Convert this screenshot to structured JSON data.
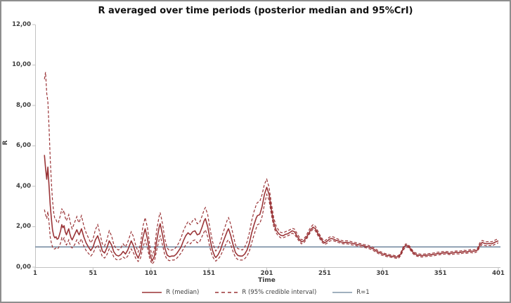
{
  "title": "R averaged over time periods (posterior median and 95%CrI)",
  "y_axis_title": "R",
  "x_axis_title": "Time",
  "legend": {
    "items": [
      {
        "label": "R (median)",
        "style": "solid",
        "color": "#9a3437"
      },
      {
        "label": "R (95% credible interval)",
        "style": "dashed",
        "color": "#9a3437"
      },
      {
        "label": "R=1",
        "style": "solid",
        "color": "#8095a9"
      }
    ]
  },
  "chart_data": {
    "type": "line",
    "title": "R averaged over time periods (posterior median and 95%CrI)",
    "xlabel": "Time",
    "ylabel": "R",
    "xlim": [
      1,
      401
    ],
    "ylim": [
      0,
      12
    ],
    "grid": false,
    "legend_position": "bottom",
    "decimal_separator": ",",
    "colors": {
      "median_line": "#9a3437",
      "interval_line": "#9a3437",
      "reference_line": "#8095a9",
      "axis": "#c2c2c2",
      "tick_text": "#3d3d3d"
    },
    "y_ticks": [
      {
        "v": 12,
        "label": "12,00"
      },
      {
        "v": 10,
        "label": "10,00"
      },
      {
        "v": 8,
        "label": "8,00"
      },
      {
        "v": 6,
        "label": "6,00"
      },
      {
        "v": 4,
        "label": "4,00"
      },
      {
        "v": 2,
        "label": "2,00"
      },
      {
        "v": 0,
        "label": "0,00"
      }
    ],
    "x_ticks": [
      {
        "v": 1,
        "label": "1"
      },
      {
        "v": 51,
        "label": "51"
      },
      {
        "v": 101,
        "label": "101"
      },
      {
        "v": 151,
        "label": "151"
      },
      {
        "v": 201,
        "label": "201"
      },
      {
        "v": 251,
        "label": "251"
      },
      {
        "v": 301,
        "label": "301"
      },
      {
        "v": 351,
        "label": "351"
      },
      {
        "v": 401,
        "label": "401"
      }
    ],
    "reference_line": {
      "y": 1,
      "label": "R=1"
    },
    "series_names": [
      "R (median)",
      "R (95% credible interval)",
      "R=1"
    ],
    "columns": [
      "time",
      "lower95",
      "median",
      "upper95"
    ],
    "rows": [
      [
        9,
        2.85,
        5.55,
        9.3
      ],
      [
        10,
        2.6,
        4.9,
        9.65
      ],
      [
        11,
        2.4,
        4.35,
        8.6
      ],
      [
        12,
        2.75,
        4.95,
        8.2
      ],
      [
        13,
        2.2,
        4.0,
        6.9
      ],
      [
        14,
        1.5,
        3.1,
        5.4
      ],
      [
        15,
        1.2,
        2.4,
        4.2
      ],
      [
        16,
        1.0,
        1.85,
        3.3
      ],
      [
        17,
        0.9,
        1.55,
        2.7
      ],
      [
        18,
        0.9,
        1.45,
        2.4
      ],
      [
        19,
        0.95,
        1.5,
        2.35
      ],
      [
        20,
        0.9,
        1.38,
        2.2
      ],
      [
        21,
        0.95,
        1.42,
        2.2
      ],
      [
        22,
        1.05,
        1.6,
        2.4
      ],
      [
        23,
        1.2,
        1.8,
        2.6
      ],
      [
        24,
        1.45,
        2.1,
        2.9
      ],
      [
        25,
        1.35,
        1.95,
        2.7
      ],
      [
        26,
        1.45,
        2.05,
        2.8
      ],
      [
        27,
        1.2,
        1.75,
        2.45
      ],
      [
        28,
        1.1,
        1.6,
        2.3
      ],
      [
        29,
        1.2,
        1.75,
        2.45
      ],
      [
        30,
        1.35,
        1.9,
        2.6
      ],
      [
        31,
        1.15,
        1.65,
        2.3
      ],
      [
        32,
        1.0,
        1.45,
        2.05
      ],
      [
        33,
        0.95,
        1.35,
        1.9
      ],
      [
        35,
        1.1,
        1.6,
        2.2
      ],
      [
        37,
        1.35,
        1.85,
        2.5
      ],
      [
        38,
        1.25,
        1.7,
        2.3
      ],
      [
        39,
        1.15,
        1.6,
        2.2
      ],
      [
        40,
        1.3,
        1.75,
        2.4
      ],
      [
        41,
        1.4,
        1.9,
        2.55
      ],
      [
        43,
        1.05,
        1.5,
        2.05
      ],
      [
        45,
        0.82,
        1.2,
        1.7
      ],
      [
        47,
        0.68,
        1.0,
        1.45
      ],
      [
        49,
        0.55,
        0.82,
        1.2
      ],
      [
        51,
        0.68,
        1.0,
        1.4
      ],
      [
        53,
        0.95,
        1.35,
        1.85
      ],
      [
        55,
        1.1,
        1.55,
        2.1
      ],
      [
        57,
        0.85,
        1.2,
        1.65
      ],
      [
        59,
        0.52,
        0.8,
        1.15
      ],
      [
        61,
        0.45,
        0.7,
        1.05
      ],
      [
        63,
        0.62,
        0.95,
        1.35
      ],
      [
        65,
        0.9,
        1.3,
        1.8
      ],
      [
        67,
        0.75,
        1.1,
        1.55
      ],
      [
        69,
        0.5,
        0.75,
        1.1
      ],
      [
        71,
        0.38,
        0.6,
        0.92
      ],
      [
        73,
        0.35,
        0.55,
        0.85
      ],
      [
        75,
        0.4,
        0.62,
        0.95
      ],
      [
        77,
        0.5,
        0.78,
        1.15
      ],
      [
        79,
        0.42,
        0.65,
        1.0
      ],
      [
        81,
        0.55,
        0.85,
        1.25
      ],
      [
        84,
        0.9,
        1.3,
        1.75
      ],
      [
        86,
        0.7,
        1.05,
        1.5
      ],
      [
        88,
        0.42,
        0.68,
        1.05
      ],
      [
        90,
        0.28,
        0.45,
        0.75
      ],
      [
        92,
        0.45,
        0.75,
        1.15
      ],
      [
        94,
        0.95,
        1.45,
        2.0
      ],
      [
        96,
        1.35,
        1.9,
        2.45
      ],
      [
        98,
        0.95,
        1.4,
        1.95
      ],
      [
        100,
        0.4,
        0.65,
        1.05
      ],
      [
        102,
        0.15,
        0.3,
        0.55
      ],
      [
        104,
        0.3,
        0.55,
        0.9
      ],
      [
        106,
        0.85,
        1.3,
        1.85
      ],
      [
        108,
        1.35,
        1.95,
        2.5
      ],
      [
        109,
        1.55,
        2.15,
        2.7
      ],
      [
        111,
        1.1,
        1.6,
        2.15
      ],
      [
        113,
        0.6,
        0.95,
        1.4
      ],
      [
        115,
        0.38,
        0.6,
        0.95
      ],
      [
        117,
        0.32,
        0.52,
        0.82
      ],
      [
        119,
        0.35,
        0.55,
        0.85
      ],
      [
        121,
        0.35,
        0.55,
        0.88
      ],
      [
        123,
        0.42,
        0.65,
        1.0
      ],
      [
        125,
        0.55,
        0.82,
        1.2
      ],
      [
        127,
        0.7,
        1.0,
        1.45
      ],
      [
        129,
        0.9,
        1.3,
        1.8
      ],
      [
        131,
        1.1,
        1.55,
        2.05
      ],
      [
        133,
        1.25,
        1.7,
        2.25
      ],
      [
        135,
        1.15,
        1.6,
        2.1
      ],
      [
        137,
        1.3,
        1.75,
        2.3
      ],
      [
        139,
        1.35,
        1.8,
        2.4
      ],
      [
        141,
        1.2,
        1.6,
        2.15
      ],
      [
        143,
        1.25,
        1.65,
        2.2
      ],
      [
        145,
        1.5,
        1.95,
        2.5
      ],
      [
        147,
        1.75,
        2.3,
        2.85
      ],
      [
        148,
        1.85,
        2.4,
        2.95
      ],
      [
        150,
        1.5,
        2.0,
        2.6
      ],
      [
        152,
        0.95,
        1.4,
        1.9
      ],
      [
        154,
        0.55,
        0.85,
        1.3
      ],
      [
        156,
        0.35,
        0.55,
        0.9
      ],
      [
        157,
        0.3,
        0.48,
        0.8
      ],
      [
        159,
        0.4,
        0.62,
        0.95
      ],
      [
        161,
        0.55,
        0.85,
        1.25
      ],
      [
        163,
        0.8,
        1.2,
        1.65
      ],
      [
        165,
        1.05,
        1.5,
        2.0
      ],
      [
        167,
        1.3,
        1.8,
        2.35
      ],
      [
        168,
        1.35,
        1.9,
        2.45
      ],
      [
        170,
        1.1,
        1.55,
        2.1
      ],
      [
        172,
        0.75,
        1.1,
        1.6
      ],
      [
        174,
        0.48,
        0.72,
        1.1
      ],
      [
        176,
        0.38,
        0.58,
        0.92
      ],
      [
        178,
        0.35,
        0.55,
        0.88
      ],
      [
        180,
        0.35,
        0.55,
        0.85
      ],
      [
        182,
        0.42,
        0.65,
        1.0
      ],
      [
        184,
        0.55,
        0.85,
        1.25
      ],
      [
        186,
        0.8,
        1.2,
        1.7
      ],
      [
        188,
        1.2,
        1.7,
        2.3
      ],
      [
        190,
        1.6,
        2.1,
        2.75
      ],
      [
        192,
        1.95,
        2.45,
        3.1
      ],
      [
        193,
        2.1,
        2.55,
        3.2
      ],
      [
        195,
        2.15,
        2.6,
        3.25
      ],
      [
        197,
        2.5,
        3.0,
        3.6
      ],
      [
        199,
        3.1,
        3.6,
        4.1
      ],
      [
        201,
        3.6,
        3.95,
        4.35
      ],
      [
        203,
        3.3,
        3.6,
        3.95
      ],
      [
        205,
        2.6,
        2.85,
        3.15
      ],
      [
        207,
        2.0,
        2.2,
        2.45
      ],
      [
        209,
        1.7,
        1.85,
        2.05
      ],
      [
        211,
        1.55,
        1.68,
        1.85
      ],
      [
        213,
        1.45,
        1.58,
        1.72
      ],
      [
        215,
        1.45,
        1.55,
        1.7
      ],
      [
        217,
        1.5,
        1.62,
        1.75
      ],
      [
        219,
        1.55,
        1.65,
        1.8
      ],
      [
        221,
        1.6,
        1.72,
        1.85
      ],
      [
        223,
        1.68,
        1.8,
        1.92
      ],
      [
        225,
        1.62,
        1.75,
        1.88
      ],
      [
        227,
        1.45,
        1.55,
        1.68
      ],
      [
        229,
        1.28,
        1.38,
        1.5
      ],
      [
        231,
        1.15,
        1.25,
        1.35
      ],
      [
        233,
        1.2,
        1.3,
        1.4
      ],
      [
        235,
        1.35,
        1.45,
        1.55
      ],
      [
        237,
        1.55,
        1.65,
        1.78
      ],
      [
        239,
        1.75,
        1.85,
        1.98
      ],
      [
        241,
        1.88,
        1.98,
        2.1
      ],
      [
        243,
        1.8,
        1.9,
        2.02
      ],
      [
        245,
        1.58,
        1.68,
        1.8
      ],
      [
        247,
        1.38,
        1.48,
        1.58
      ],
      [
        249,
        1.22,
        1.3,
        1.4
      ],
      [
        251,
        1.12,
        1.2,
        1.3
      ],
      [
        253,
        1.18,
        1.28,
        1.38
      ],
      [
        255,
        1.28,
        1.38,
        1.48
      ],
      [
        257,
        1.32,
        1.42,
        1.52
      ],
      [
        259,
        1.3,
        1.38,
        1.48
      ],
      [
        261,
        1.25,
        1.32,
        1.42
      ],
      [
        263,
        1.22,
        1.3,
        1.38
      ],
      [
        265,
        1.18,
        1.25,
        1.33
      ],
      [
        267,
        1.15,
        1.22,
        1.3
      ],
      [
        269,
        1.15,
        1.22,
        1.3
      ],
      [
        271,
        1.15,
        1.22,
        1.3
      ],
      [
        273,
        1.12,
        1.2,
        1.28
      ],
      [
        275,
        1.1,
        1.18,
        1.25
      ],
      [
        277,
        1.08,
        1.15,
        1.22
      ],
      [
        279,
        1.05,
        1.12,
        1.2
      ],
      [
        281,
        1.02,
        1.1,
        1.17
      ],
      [
        283,
        1.0,
        1.08,
        1.15
      ],
      [
        285,
        0.98,
        1.05,
        1.12
      ],
      [
        287,
        0.95,
        1.02,
        1.1
      ],
      [
        289,
        0.92,
        1.0,
        1.07
      ],
      [
        291,
        0.88,
        0.95,
        1.02
      ],
      [
        293,
        0.82,
        0.9,
        0.97
      ],
      [
        295,
        0.75,
        0.82,
        0.9
      ],
      [
        297,
        0.68,
        0.75,
        0.82
      ],
      [
        299,
        0.62,
        0.7,
        0.77
      ],
      [
        301,
        0.58,
        0.65,
        0.72
      ],
      [
        303,
        0.55,
        0.62,
        0.68
      ],
      [
        305,
        0.52,
        0.58,
        0.65
      ],
      [
        307,
        0.5,
        0.56,
        0.62
      ],
      [
        309,
        0.48,
        0.54,
        0.6
      ],
      [
        311,
        0.46,
        0.52,
        0.58
      ],
      [
        313,
        0.44,
        0.5,
        0.56
      ],
      [
        315,
        0.45,
        0.52,
        0.58
      ],
      [
        317,
        0.6,
        0.68,
        0.75
      ],
      [
        319,
        0.85,
        0.95,
        1.02
      ],
      [
        321,
        1.0,
        1.08,
        1.15
      ],
      [
        323,
        0.98,
        1.05,
        1.12
      ],
      [
        325,
        0.85,
        0.92,
        1.0
      ],
      [
        327,
        0.68,
        0.75,
        0.82
      ],
      [
        329,
        0.58,
        0.65,
        0.72
      ],
      [
        331,
        0.54,
        0.6,
        0.67
      ],
      [
        333,
        0.52,
        0.58,
        0.65
      ],
      [
        335,
        0.5,
        0.57,
        0.63
      ],
      [
        337,
        0.52,
        0.58,
        0.65
      ],
      [
        339,
        0.53,
        0.6,
        0.66
      ],
      [
        341,
        0.54,
        0.6,
        0.67
      ],
      [
        343,
        0.55,
        0.62,
        0.68
      ],
      [
        345,
        0.56,
        0.63,
        0.7
      ],
      [
        347,
        0.58,
        0.65,
        0.72
      ],
      [
        349,
        0.6,
        0.67,
        0.74
      ],
      [
        351,
        0.62,
        0.68,
        0.75
      ],
      [
        353,
        0.63,
        0.7,
        0.77
      ],
      [
        355,
        0.65,
        0.72,
        0.78
      ],
      [
        357,
        0.64,
        0.7,
        0.77
      ],
      [
        359,
        0.62,
        0.68,
        0.75
      ],
      [
        361,
        0.63,
        0.7,
        0.77
      ],
      [
        363,
        0.65,
        0.72,
        0.79
      ],
      [
        365,
        0.66,
        0.73,
        0.8
      ],
      [
        367,
        0.65,
        0.72,
        0.79
      ],
      [
        369,
        0.67,
        0.74,
        0.81
      ],
      [
        371,
        0.7,
        0.77,
        0.84
      ],
      [
        373,
        0.68,
        0.75,
        0.82
      ],
      [
        375,
        0.7,
        0.77,
        0.84
      ],
      [
        377,
        0.73,
        0.8,
        0.87
      ],
      [
        379,
        0.7,
        0.78,
        0.85
      ],
      [
        381,
        0.72,
        0.8,
        0.87
      ],
      [
        383,
        0.78,
        0.85,
        0.93
      ],
      [
        385,
        1.0,
        1.1,
        1.2
      ],
      [
        387,
        1.12,
        1.22,
        1.32
      ],
      [
        389,
        1.08,
        1.18,
        1.28
      ],
      [
        391,
        1.05,
        1.15,
        1.25
      ],
      [
        393,
        1.08,
        1.18,
        1.28
      ],
      [
        395,
        1.05,
        1.15,
        1.25
      ],
      [
        397,
        1.1,
        1.2,
        1.3
      ],
      [
        399,
        1.16,
        1.26,
        1.36
      ],
      [
        401,
        1.2,
        1.3,
        1.42
      ]
    ]
  }
}
